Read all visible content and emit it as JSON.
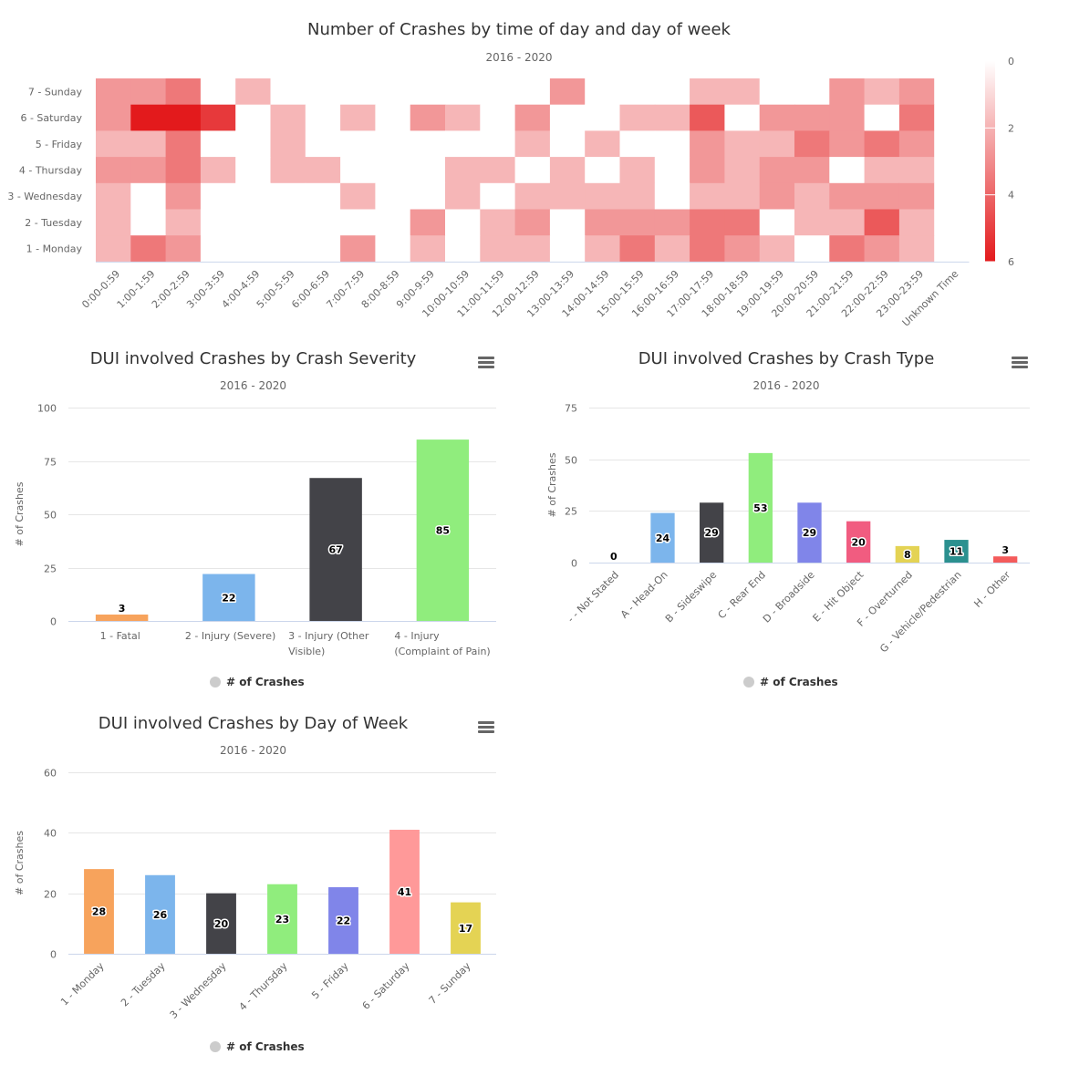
{
  "heatmap": {
    "title": "Number of Crashes by time of day and day of week",
    "subtitle": "2016 - 2020",
    "chart_data": {
      "type": "heatmap",
      "x_categories": [
        "0:00-0:59",
        "1:00-1:59",
        "2:00-2:59",
        "3:00-3:59",
        "4:00-4:59",
        "5:00-5:59",
        "6:00-6:59",
        "7:00-7:59",
        "8:00-8:59",
        "9:00-9:59",
        "10:00-10:59",
        "11:00-11:59",
        "12:00-12:59",
        "13:00-13:59",
        "14:00-14:59",
        "15:00-15:59",
        "16:00-16:59",
        "17:00-17:59",
        "18:00-18:59",
        "19:00-19:59",
        "20:00-20:59",
        "21:00-21:59",
        "22:00-22:59",
        "23:00-23:59",
        "Unknown Time"
      ],
      "y_categories": [
        "7 - Sunday",
        "6 - Saturday",
        "5 - Friday",
        "4 - Thursday",
        "3 - Wednesday",
        "2 - Tuesday",
        "1 - Monday"
      ],
      "values": [
        [
          2,
          2,
          3,
          0,
          1,
          0,
          0,
          0,
          0,
          0,
          0,
          0,
          0,
          2,
          0,
          0,
          0,
          1,
          1,
          0,
          0,
          2,
          1,
          2,
          0
        ],
        [
          2,
          6,
          6,
          5,
          0,
          1,
          0,
          1,
          0,
          2,
          1,
          0,
          2,
          0,
          0,
          1,
          1,
          4,
          0,
          2,
          2,
          2,
          0,
          3,
          0
        ],
        [
          1,
          1,
          3,
          0,
          0,
          1,
          0,
          0,
          0,
          0,
          0,
          0,
          1,
          0,
          1,
          0,
          0,
          2,
          1,
          1,
          3,
          2,
          3,
          2,
          0
        ],
        [
          2,
          2,
          3,
          1,
          0,
          1,
          1,
          0,
          0,
          0,
          1,
          1,
          0,
          1,
          0,
          1,
          0,
          2,
          1,
          2,
          2,
          0,
          1,
          1,
          0
        ],
        [
          1,
          0,
          2,
          0,
          0,
          0,
          0,
          1,
          0,
          0,
          1,
          0,
          1,
          1,
          1,
          1,
          0,
          1,
          1,
          2,
          1,
          2,
          2,
          2,
          0
        ],
        [
          1,
          0,
          1,
          0,
          0,
          0,
          0,
          0,
          0,
          2,
          0,
          1,
          2,
          0,
          2,
          2,
          2,
          3,
          3,
          0,
          1,
          1,
          4,
          1,
          0
        ],
        [
          1,
          3,
          2,
          0,
          0,
          0,
          0,
          2,
          0,
          1,
          0,
          1,
          1,
          0,
          1,
          3,
          1,
          3,
          2,
          1,
          0,
          3,
          2,
          1,
          0
        ]
      ],
      "color_range": [
        0,
        6
      ],
      "color_axis_ticks": [
        "0",
        "2",
        "4",
        "6"
      ],
      "min_color": "#ffffff",
      "max_color": "#e31a1c"
    }
  },
  "severity": {
    "title": "DUI involved Crashes by Crash Severity",
    "subtitle": "2016 - 2020",
    "legend": "# of Crashes",
    "chart_data": {
      "type": "bar",
      "categories": [
        [
          "1 - Fatal"
        ],
        [
          "2 - Injury (Severe)"
        ],
        [
          "3 - Injury (Other",
          "Visible)"
        ],
        [
          "4 - Injury",
          "(Complaint of Pain)"
        ]
      ],
      "values": [
        3,
        22,
        67,
        85
      ],
      "colors": [
        "#f7a35c",
        "#7cb5ec",
        "#434348",
        "#90ed7d"
      ],
      "ylabel": "# of Crashes",
      "ylim": [
        0,
        100
      ],
      "yticks": [
        0,
        25,
        50,
        75,
        100
      ],
      "label_rotation": 0
    }
  },
  "crashtype": {
    "title": "DUI involved Crashes by Crash Type",
    "subtitle": "2016 - 2020",
    "legend": "# of Crashes",
    "chart_data": {
      "type": "bar",
      "categories": [
        [
          "- - Not Stated"
        ],
        [
          "A - Head-On"
        ],
        [
          "B - Sideswipe"
        ],
        [
          "C - Rear End"
        ],
        [
          "D - Broadside"
        ],
        [
          "E - Hit Object"
        ],
        [
          "F - Overturned"
        ],
        [
          "G - Vehicle/Pedestrian"
        ],
        [
          "H - Other"
        ]
      ],
      "values": [
        0,
        24,
        29,
        53,
        29,
        20,
        8,
        11,
        3
      ],
      "colors": [
        "#f7a35c",
        "#7cb5ec",
        "#434348",
        "#90ed7d",
        "#8085e9",
        "#f15c80",
        "#e4d354",
        "#2b908f",
        "#f45b5b"
      ],
      "ylabel": "# of Crashes",
      "ylim": [
        0,
        75
      ],
      "yticks": [
        0,
        25,
        50,
        75
      ],
      "label_rotation": -45
    }
  },
  "dayofweek": {
    "title": "DUI involved Crashes by Day of Week",
    "subtitle": "2016 - 2020",
    "legend": "# of Crashes",
    "chart_data": {
      "type": "bar",
      "categories": [
        [
          "1 - Monday"
        ],
        [
          "2 - Tuesday"
        ],
        [
          "3 - Wednesday"
        ],
        [
          "4 - Thursday"
        ],
        [
          "5 - Friday"
        ],
        [
          "6 - Saturday"
        ],
        [
          "7 - Sunday"
        ]
      ],
      "values": [
        28,
        26,
        20,
        23,
        22,
        41,
        17
      ],
      "colors": [
        "#f7a35c",
        "#7cb5ec",
        "#434348",
        "#90ed7d",
        "#8085e9",
        "#ff9999",
        "#e4d354"
      ],
      "ylabel": "# of Crashes",
      "ylim": [
        0,
        60
      ],
      "yticks": [
        0,
        20,
        40,
        60
      ],
      "label_rotation": -45
    }
  }
}
